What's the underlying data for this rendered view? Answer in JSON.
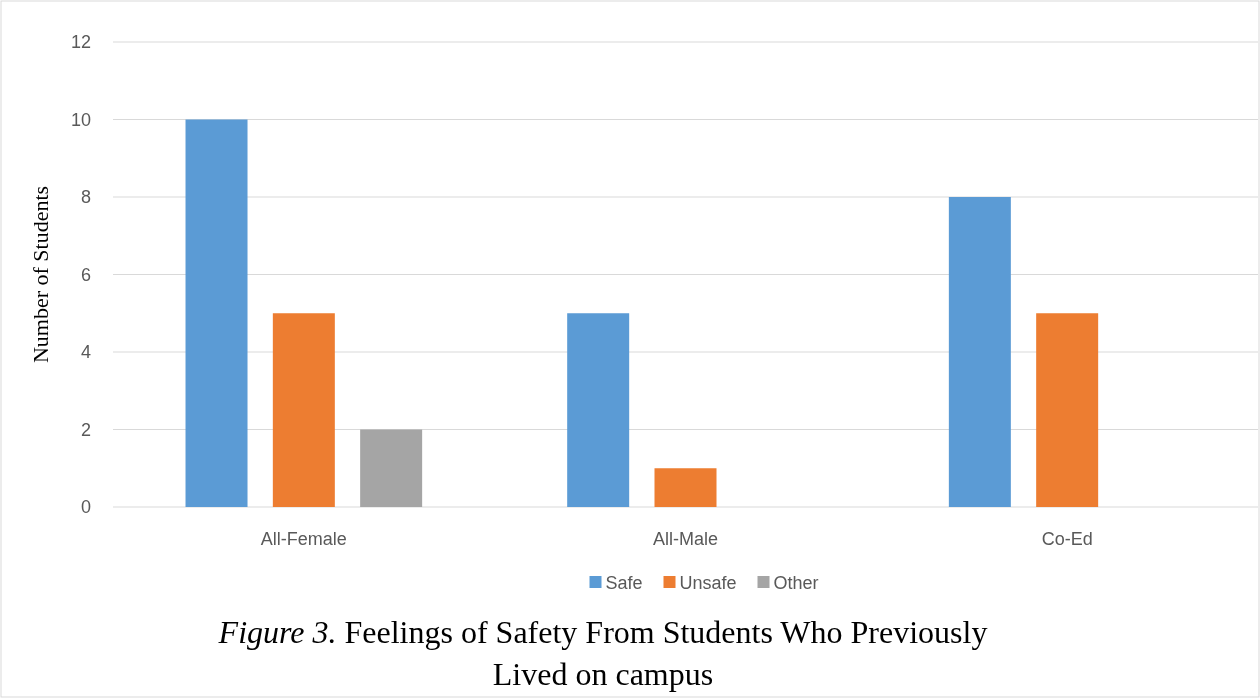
{
  "chart_data": {
    "type": "bar",
    "ylabel": "Number of Students",
    "categories": [
      "All-Female",
      "All-Male",
      "Co-Ed"
    ],
    "series": [
      {
        "name": "Safe",
        "color": "#5b9bd5",
        "values": [
          10,
          5,
          8
        ]
      },
      {
        "name": "Unsafe",
        "color": "#ed7d31",
        "values": [
          5,
          1,
          5
        ]
      },
      {
        "name": "Other",
        "color": "#a5a5a5",
        "values": [
          2,
          0,
          0
        ]
      }
    ],
    "ylim": [
      0,
      12
    ],
    "yticks": [
      0,
      2,
      4,
      6,
      8,
      10,
      12
    ],
    "grid": "y",
    "legend": "bottom",
    "annotations": [
      "Figure 3.",
      "Feelings of Safety From Students Who Previously Lived on campus"
    ]
  }
}
